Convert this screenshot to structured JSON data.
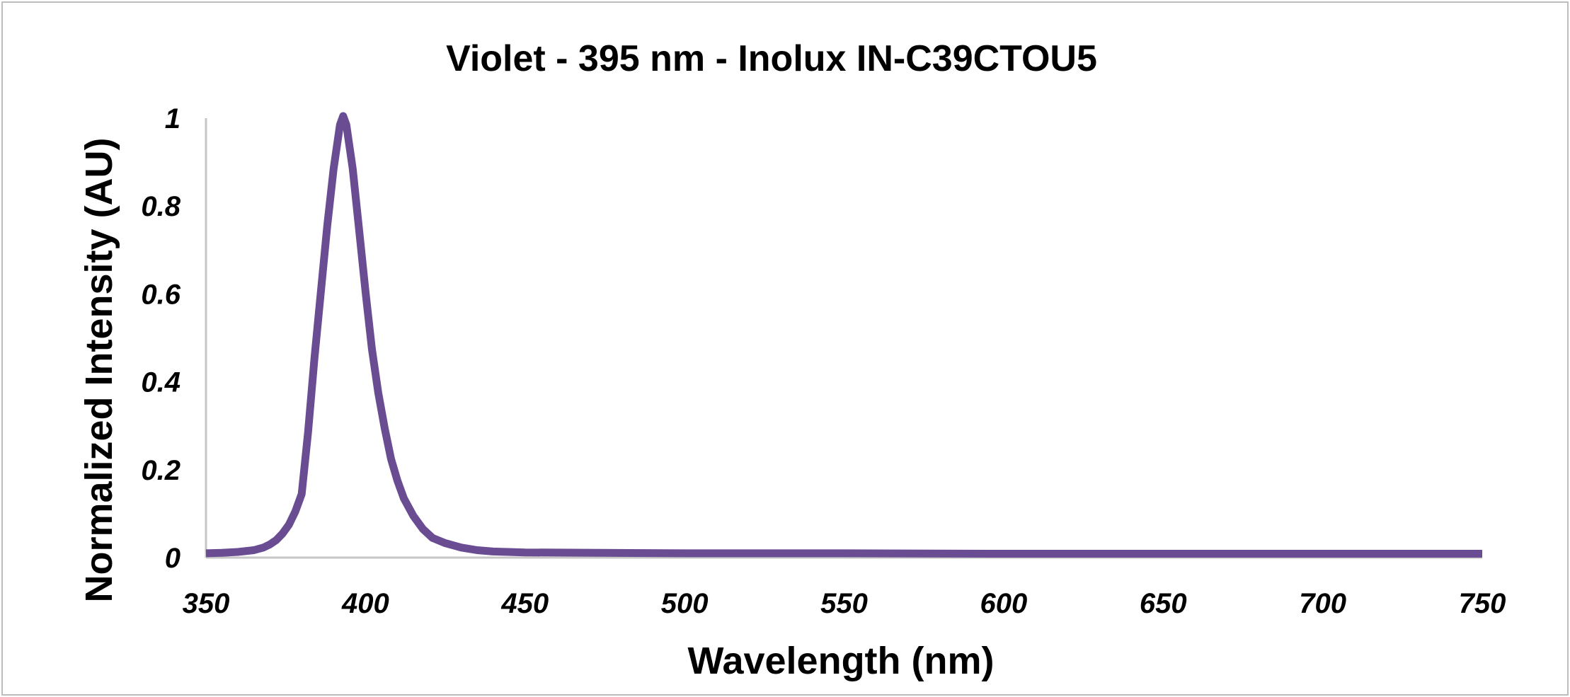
{
  "chart_data": {
    "type": "line",
    "title": "Violet - 395 nm - Inolux IN-C39CTOU5",
    "xlabel": "Wavelength (nm)",
    "ylabel": "Normalized Intensity (AU)",
    "xlim": [
      350,
      750
    ],
    "ylim": [
      0,
      1
    ],
    "xticks": [
      "350",
      "400",
      "450",
      "500",
      "550",
      "600",
      "650",
      "700",
      "750"
    ],
    "yticks": [
      "0",
      "0.2",
      "0.4",
      "0.6",
      "0.8",
      "1"
    ],
    "grid": false,
    "legend": "none",
    "line_color": "#6a4c93",
    "series": [
      {
        "x": [
          350,
          355,
          360,
          365,
          368,
          370,
          372,
          374,
          376,
          378,
          380,
          382,
          384,
          386,
          388,
          390,
          392,
          393,
          394,
          396,
          398,
          400,
          402,
          404,
          406,
          408,
          410,
          412,
          415,
          418,
          421,
          425,
          430,
          435,
          440,
          450,
          500,
          550,
          600,
          650,
          700,
          750
        ],
        "y": [
          0.005,
          0.006,
          0.008,
          0.012,
          0.018,
          0.025,
          0.035,
          0.05,
          0.07,
          0.1,
          0.14,
          0.28,
          0.45,
          0.6,
          0.75,
          0.88,
          0.98,
          1.0,
          0.98,
          0.88,
          0.74,
          0.6,
          0.47,
          0.37,
          0.29,
          0.22,
          0.17,
          0.13,
          0.09,
          0.06,
          0.04,
          0.028,
          0.018,
          0.012,
          0.009,
          0.007,
          0.005,
          0.005,
          0.004,
          0.004,
          0.004,
          0.004
        ]
      }
    ]
  }
}
